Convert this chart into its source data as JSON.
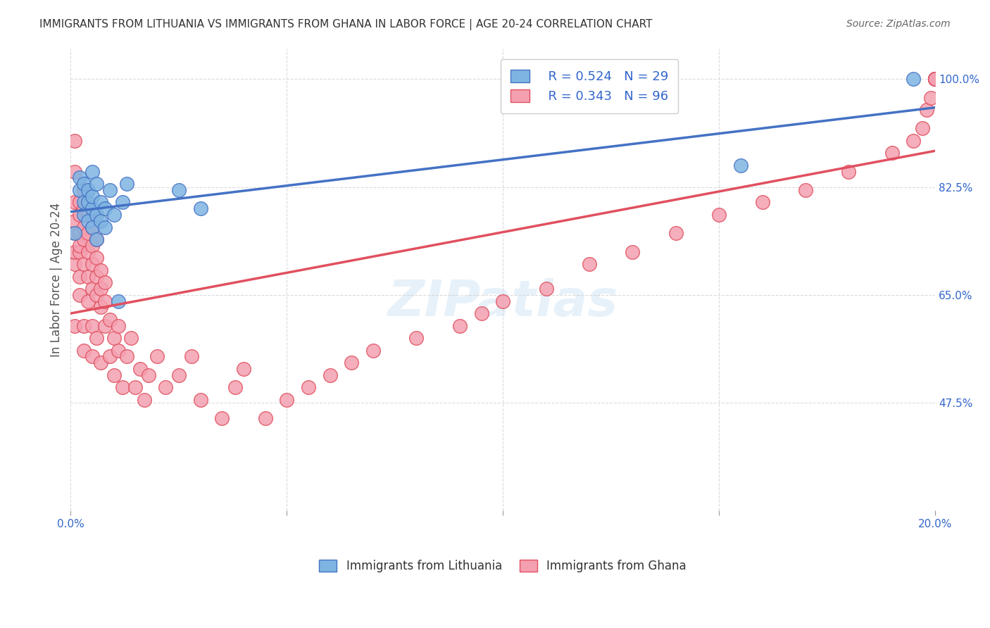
{
  "title": "IMMIGRANTS FROM LITHUANIA VS IMMIGRANTS FROM GHANA IN LABOR FORCE | AGE 20-24 CORRELATION CHART",
  "source_text": "Source: ZipAtlas.com",
  "xlabel": "",
  "ylabel": "In Labor Force | Age 20-24",
  "x_min": 0.0,
  "x_max": 0.2,
  "y_min": 0.3,
  "y_max": 1.05,
  "x_ticks": [
    0.0,
    0.05,
    0.1,
    0.15,
    0.2
  ],
  "x_tick_labels": [
    "0.0%",
    "",
    "",
    "",
    "20.0%"
  ],
  "y_ticks": [
    0.475,
    0.65,
    0.825,
    1.0
  ],
  "y_tick_labels": [
    "47.5%",
    "65.0%",
    "82.5%",
    "100.0%"
  ],
  "watermark": "ZIPatlas",
  "legend_r1": "R = 0.524",
  "legend_n1": "N = 29",
  "legend_r2": "R = 0.343",
  "legend_n2": "N = 96",
  "color_lithuania": "#7EB4E2",
  "color_ghana": "#F4A0B0",
  "line_color_lithuania": "#4472C4",
  "line_color_ghana": "#E05060",
  "label_lithuania": "Immigrants from Lithuania",
  "label_ghana": "Immigrants from Ghana",
  "lithuania_x": [
    0.001,
    0.002,
    0.002,
    0.003,
    0.003,
    0.003,
    0.004,
    0.004,
    0.004,
    0.005,
    0.005,
    0.005,
    0.005,
    0.006,
    0.006,
    0.006,
    0.007,
    0.007,
    0.008,
    0.008,
    0.009,
    0.01,
    0.011,
    0.012,
    0.013,
    0.025,
    0.03,
    0.155,
    0.195
  ],
  "lithuania_y": [
    0.75,
    0.82,
    0.84,
    0.78,
    0.8,
    0.83,
    0.77,
    0.8,
    0.82,
    0.76,
    0.79,
    0.81,
    0.85,
    0.74,
    0.78,
    0.83,
    0.77,
    0.8,
    0.76,
    0.79,
    0.82,
    0.78,
    0.64,
    0.8,
    0.83,
    0.82,
    0.79,
    0.86,
    1.0
  ],
  "ghana_x": [
    0.001,
    0.001,
    0.001,
    0.001,
    0.001,
    0.001,
    0.001,
    0.001,
    0.002,
    0.002,
    0.002,
    0.002,
    0.002,
    0.002,
    0.002,
    0.003,
    0.003,
    0.003,
    0.003,
    0.003,
    0.003,
    0.003,
    0.004,
    0.004,
    0.004,
    0.004,
    0.004,
    0.005,
    0.005,
    0.005,
    0.005,
    0.005,
    0.005,
    0.006,
    0.006,
    0.006,
    0.006,
    0.006,
    0.007,
    0.007,
    0.007,
    0.007,
    0.008,
    0.008,
    0.008,
    0.009,
    0.009,
    0.01,
    0.01,
    0.011,
    0.011,
    0.012,
    0.013,
    0.014,
    0.015,
    0.016,
    0.017,
    0.018,
    0.02,
    0.022,
    0.025,
    0.028,
    0.03,
    0.035,
    0.038,
    0.04,
    0.045,
    0.05,
    0.055,
    0.06,
    0.065,
    0.07,
    0.08,
    0.09,
    0.095,
    0.1,
    0.11,
    0.12,
    0.13,
    0.14,
    0.15,
    0.16,
    0.17,
    0.18,
    0.19,
    0.195,
    0.197,
    0.198,
    0.199,
    0.2,
    0.2,
    0.2,
    0.2,
    0.2,
    0.2,
    0.2
  ],
  "ghana_y": [
    0.75,
    0.8,
    0.85,
    0.7,
    0.9,
    0.6,
    0.72,
    0.77,
    0.72,
    0.75,
    0.78,
    0.8,
    0.68,
    0.65,
    0.73,
    0.7,
    0.74,
    0.76,
    0.79,
    0.82,
    0.6,
    0.56,
    0.68,
    0.72,
    0.75,
    0.78,
    0.64,
    0.66,
    0.7,
    0.73,
    0.76,
    0.6,
    0.55,
    0.65,
    0.68,
    0.71,
    0.74,
    0.58,
    0.63,
    0.66,
    0.69,
    0.54,
    0.6,
    0.64,
    0.67,
    0.55,
    0.61,
    0.58,
    0.52,
    0.6,
    0.56,
    0.5,
    0.55,
    0.58,
    0.5,
    0.53,
    0.48,
    0.52,
    0.55,
    0.5,
    0.52,
    0.55,
    0.48,
    0.45,
    0.5,
    0.53,
    0.45,
    0.48,
    0.5,
    0.52,
    0.54,
    0.56,
    0.58,
    0.6,
    0.62,
    0.64,
    0.66,
    0.7,
    0.72,
    0.75,
    0.78,
    0.8,
    0.82,
    0.85,
    0.88,
    0.9,
    0.92,
    0.95,
    0.97,
    1.0,
    1.0,
    1.0,
    1.0,
    1.0,
    1.0,
    1.0
  ]
}
